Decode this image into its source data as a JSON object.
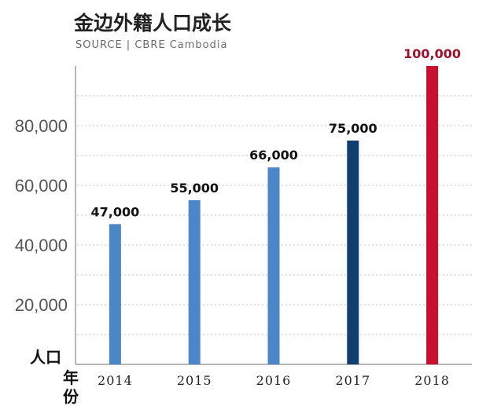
{
  "chart_data": {
    "type": "bar",
    "title": "金边外籍人口成长",
    "source": "SOURCE | CBRE Cambodia",
    "categories": [
      "2014",
      "2015",
      "2016",
      "2017",
      "2018"
    ],
    "values": [
      47000,
      55000,
      66000,
      75000,
      100000
    ],
    "value_labels": [
      "47,000",
      "55,000",
      "66,000",
      "75,000",
      "100,000"
    ],
    "ylabel": "人口",
    "xlabel_chars": [
      "年",
      "份"
    ],
    "yticks": [
      {
        "value": 20000,
        "label": "20,000"
      },
      {
        "value": 40000,
        "label": "40,000"
      },
      {
        "value": 60000,
        "label": "60,000"
      },
      {
        "value": 80000,
        "label": "80,000"
      }
    ],
    "ylim": [
      0,
      100000
    ],
    "grid": true,
    "colors": {
      "bar_default": "#4a86c8",
      "bar_2017": "#0f3f6e",
      "bar_2018": "#c8102e",
      "label_default": "#111111",
      "label_2018": "#a00f2a"
    },
    "bar_colors": [
      "#4a86c8",
      "#4a86c8",
      "#4a86c8",
      "#0f3f6e",
      "#c8102e"
    ],
    "label_colors": [
      "#111111",
      "#111111",
      "#111111",
      "#111111",
      "#a00f2a"
    ]
  }
}
